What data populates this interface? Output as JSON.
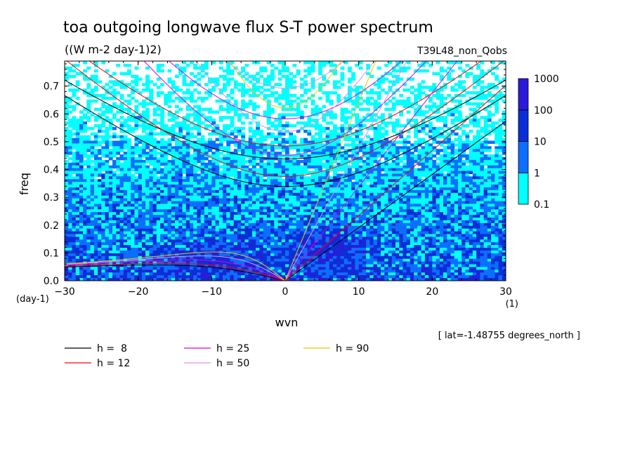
{
  "chart_data": {
    "type": "heatmap",
    "title": "toa outgoing longwave flux S-T power spectrum",
    "units": "((W m-2 day-1)2)",
    "run_label": "T39L48_non_Qobs",
    "xlabel": "wvn",
    "ylabel": "freq",
    "x_unit": "(1)",
    "y_unit": "(day-1)",
    "xlim": [
      -30,
      30
    ],
    "ylim": [
      0,
      0.79
    ],
    "xticks": [
      -30,
      -20,
      -10,
      0,
      10,
      20,
      30
    ],
    "yticks": [
      0.0,
      0.1,
      0.2,
      0.3,
      0.4,
      0.5,
      0.6,
      0.7
    ],
    "footnote": "[ lat=-1.48755 degrees_north ]",
    "colorbar": {
      "levels": [
        "0.1",
        "1",
        "10",
        "100",
        "1000"
      ],
      "colors": [
        "#00ffff",
        "#0d6efd",
        "#0b2fd6",
        "#2b1ad8"
      ]
    },
    "series": [
      {
        "name": "h =  8",
        "h": 8,
        "color": "#000000"
      },
      {
        "name": "h = 12",
        "h": 12,
        "color": "#ff0000"
      },
      {
        "name": "h = 25",
        "h": 25,
        "color": "#e000e0"
      },
      {
        "name": "h = 50",
        "h": 50,
        "color": "#e290e8"
      },
      {
        "name": "h = 90",
        "h": 90,
        "color": "#f0c800"
      }
    ],
    "legend": [
      {
        "label": "h =  8",
        "color": "#000000"
      },
      {
        "label": "h = 25",
        "color": "#e000e0"
      },
      {
        "label": "h = 90",
        "color": "#f0c800"
      },
      {
        "label": "h = 12",
        "color": "#ff0000"
      },
      {
        "label": "h = 50",
        "color": "#e290e8"
      }
    ]
  }
}
